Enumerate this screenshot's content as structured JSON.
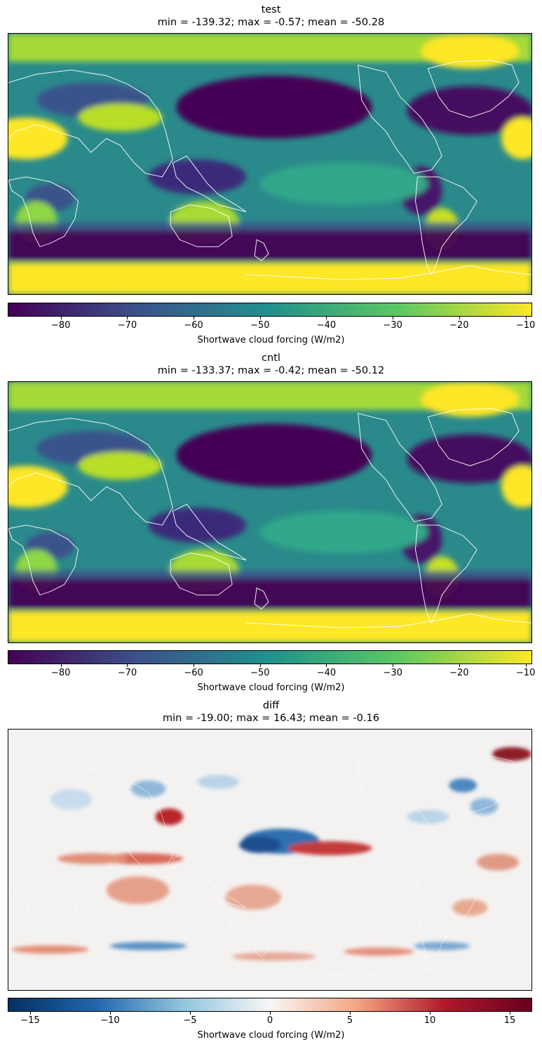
{
  "chart_data": [
    {
      "type": "heatmap",
      "title": "test",
      "subtitle": "min = -139.32; max = -0.57; mean = -50.28",
      "colormap": "viridis",
      "colorbar": {
        "label": "Shortwave cloud forcing (W/m2)",
        "range": [
          -88,
          -9
        ],
        "ticks": [
          -80,
          -70,
          -60,
          -50,
          -40,
          -30,
          -20,
          -10
        ],
        "tick_labels": [
          "−80",
          "−70",
          "−60",
          "−50",
          "−40",
          "−30",
          "−20",
          "−10"
        ]
      }
    },
    {
      "type": "heatmap",
      "title": "cntl",
      "subtitle": "min = -133.37; max = -0.42; mean = -50.12",
      "colormap": "viridis",
      "colorbar": {
        "label": "Shortwave cloud forcing (W/m2)",
        "range": [
          -88,
          -9
        ],
        "ticks": [
          -80,
          -70,
          -60,
          -50,
          -40,
          -30,
          -20,
          -10
        ],
        "tick_labels": [
          "−80",
          "−70",
          "−60",
          "−50",
          "−40",
          "−30",
          "−20",
          "−10"
        ]
      }
    },
    {
      "type": "heatmap",
      "title": "diff",
      "subtitle": "min = -19.00; max = 16.43; mean = -0.16",
      "colormap": "RdBu_r",
      "colorbar": {
        "label": "Shortwave cloud forcing (W/m2)",
        "range": [
          -16.4,
          16.4
        ],
        "ticks": [
          -15,
          -10,
          -5,
          0,
          5,
          10,
          15
        ],
        "tick_labels": [
          "−15",
          "−10",
          "−5",
          "0",
          "5",
          "10",
          "15"
        ]
      }
    }
  ],
  "colors": {
    "viridis": [
      "#440154",
      "#3b528b",
      "#21918c",
      "#5ec962",
      "#fde725"
    ],
    "rdbu": [
      "#053061",
      "#2166ac",
      "#92c5de",
      "#f7f7f7",
      "#f4a582",
      "#b2182b",
      "#67001f"
    ],
    "coastline": "#ffffff"
  }
}
